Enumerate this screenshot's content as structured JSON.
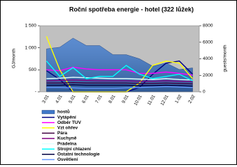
{
  "chart_data": {
    "type": "line",
    "title": "Roční spotřeba energie - hotel (322 lůžek)",
    "y_label": "GJ/month",
    "y2_label": "guests/month",
    "categories": [
      "3.01",
      "4.01",
      "5.01",
      "6.01",
      "7.01",
      "8.01",
      "9.01",
      "10.01",
      "11.01",
      "12.01",
      "1.02",
      "2.02"
    ],
    "ylim": [
      0,
      1500
    ],
    "yticks": [
      {
        "value": 0,
        "label": "-"
      },
      500,
      {
        "value": 1000,
        "label": "1 000"
      },
      {
        "value": 1500,
        "label": "1 500"
      }
    ],
    "y2lim": [
      0,
      8000
    ],
    "y2ticks": [
      0,
      2000,
      4000,
      6000,
      8000
    ],
    "plot_background": "#c0c0c0",
    "series": [
      {
        "name": "hostů",
        "type": "area",
        "axis": "y2",
        "color": "#3f78c8",
        "values": [
          5200,
          5400,
          6500,
          5600,
          5600,
          4500,
          4500,
          4000,
          3100,
          3500,
          2700,
          2900
        ]
      },
      {
        "name": "Vytápění",
        "color": "#000080",
        "values": [
          480,
          280,
          0,
          0,
          0,
          0,
          0,
          100,
          400,
          650,
          700,
          400
        ]
      },
      {
        "name": "Odběr TUV",
        "color": "#ff00ff",
        "values": [
          500,
          480,
          560,
          520,
          500,
          500,
          500,
          420,
          420,
          450,
          420,
          380
        ]
      },
      {
        "name": "Vzt ohřev",
        "color": "#ffff00",
        "values": [
          1260,
          500,
          0,
          0,
          0,
          0,
          0,
          200,
          600,
          700,
          650,
          300
        ]
      },
      {
        "name": "Pára",
        "color": "#400040",
        "values": [
          200,
          200,
          210,
          200,
          200,
          200,
          200,
          190,
          190,
          200,
          190,
          180
        ]
      },
      {
        "name": "Kuchyně",
        "color": "#800080",
        "values": [
          250,
          260,
          270,
          260,
          250,
          250,
          250,
          240,
          240,
          250,
          240,
          230
        ]
      },
      {
        "name": "Prádelna",
        "color": "#e0ffff",
        "values": [
          300,
          310,
          330,
          320,
          310,
          300,
          300,
          290,
          280,
          300,
          280,
          270
        ]
      },
      {
        "name": "Strojní chlazení",
        "color": "#00ffff",
        "values": [
          700,
          350,
          550,
          300,
          350,
          350,
          600,
          400,
          300,
          350,
          400,
          250
        ]
      },
      {
        "name": "Ostatní technologie",
        "color": "#000040",
        "values": [
          150,
          150,
          160,
          150,
          150,
          150,
          150,
          140,
          140,
          150,
          140,
          130
        ]
      },
      {
        "name": "Osvětlení",
        "color": "#6699ff",
        "values": [
          100,
          100,
          90,
          80,
          80,
          80,
          90,
          100,
          110,
          120,
          110,
          100
        ]
      }
    ]
  }
}
